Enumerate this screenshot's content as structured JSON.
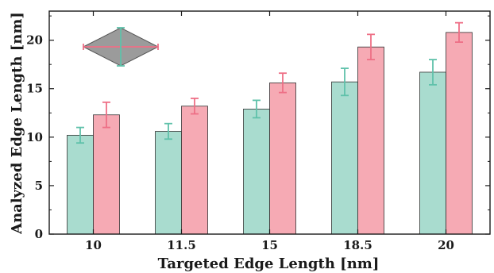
{
  "chart_data": {
    "type": "bar",
    "title": "",
    "xlabel": "Targeted Edge Length [nm]",
    "ylabel": "Analyzed Edge Length [nm]",
    "categories": [
      "10",
      "11.5",
      "15",
      "18.5",
      "20"
    ],
    "ylim": [
      0,
      23
    ],
    "yticks": [
      0,
      5,
      10,
      15,
      20
    ],
    "grid": false,
    "legend": "none",
    "series": [
      {
        "color": "#a9dccf",
        "error_color": "#5fc1aa",
        "values": [
          10.2,
          10.6,
          12.9,
          15.7,
          16.7
        ],
        "errors": [
          0.8,
          0.8,
          0.9,
          1.4,
          1.3
        ]
      },
      {
        "color": "#f6aab4",
        "error_color": "#ee6f86",
        "values": [
          12.3,
          13.2,
          15.6,
          19.3,
          20.8
        ],
        "errors": [
          1.3,
          0.8,
          1.0,
          1.3,
          1.0
        ]
      }
    ],
    "inset": {
      "shape": "rhombus",
      "fill": "#9b9b9b",
      "horizontal_axis_color": "#ee6f86",
      "vertical_axis_color": "#5fc1aa"
    }
  }
}
